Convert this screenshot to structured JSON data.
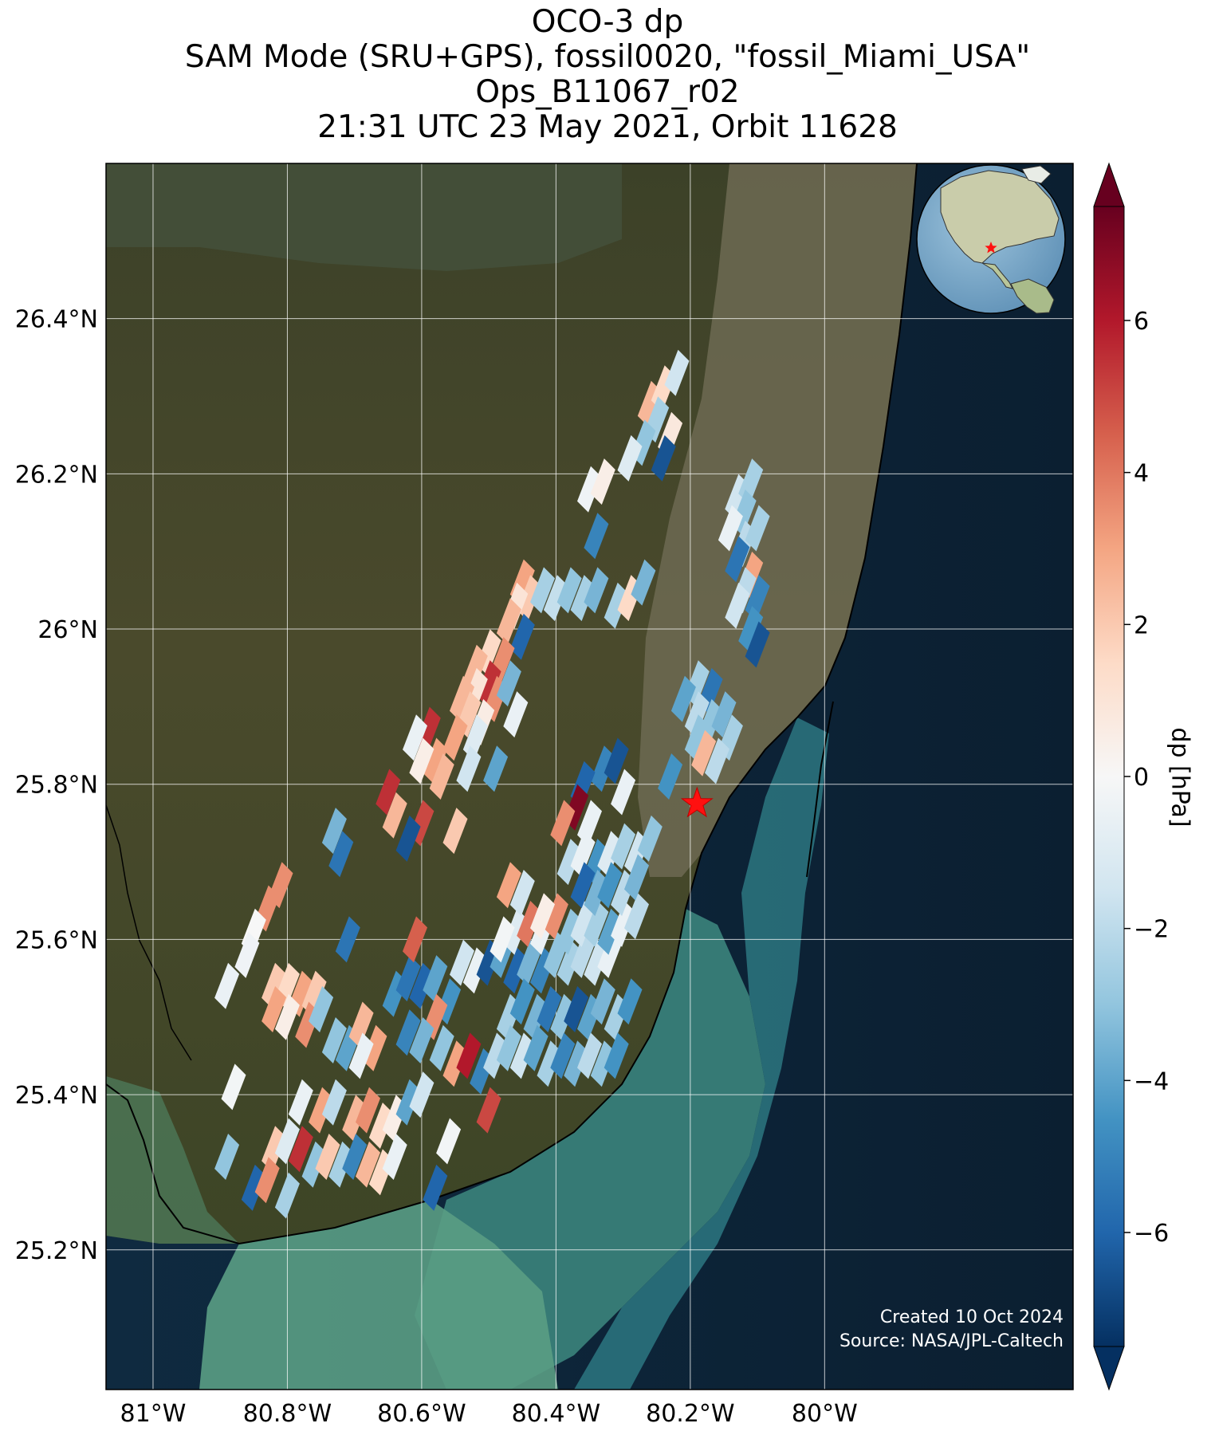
{
  "title": {
    "line1": "OCO-3 dp",
    "line2": "SAM Mode (SRU+GPS), fossil0020, \"fossil_Miami_USA\"",
    "line3": "Ops_B11067_r02",
    "line4": "21:31 UTC 23 May 2021, Orbit 11628"
  },
  "map": {
    "lat_ticks": [
      {
        "value": 26.4,
        "label": "26.4°N"
      },
      {
        "value": 26.2,
        "label": "26.2°N"
      },
      {
        "value": 26.0,
        "label": "26°N"
      },
      {
        "value": 25.8,
        "label": "25.8°N"
      },
      {
        "value": 25.6,
        "label": "25.6°N"
      },
      {
        "value": 25.4,
        "label": "25.4°N"
      },
      {
        "value": 25.2,
        "label": "25.2°N"
      }
    ],
    "lon_ticks": [
      {
        "value": -81.0,
        "label": "81°W"
      },
      {
        "value": -80.8,
        "label": "80.8°W"
      },
      {
        "value": -80.6,
        "label": "80.6°W"
      },
      {
        "value": -80.4,
        "label": "80.4°W"
      },
      {
        "value": -80.2,
        "label": "80.2°W"
      },
      {
        "value": -80.0,
        "label": "80°W"
      }
    ],
    "lon_range": [
      -81.07,
      -79.63
    ],
    "lat_range": [
      25.02,
      26.6
    ],
    "target": {
      "name": "fossil_Miami_USA",
      "lon": -80.19,
      "lat": 25.775,
      "marker": "red-star"
    },
    "credits": {
      "line1": "Created 10 Oct 2024",
      "line2": "Source: NASA/JPL-Caltech"
    },
    "inset": "globe-americas-with-red-star"
  },
  "colorbar": {
    "label": "dp [hPa]",
    "range": [
      -7.5,
      7.5
    ],
    "ticks": [
      {
        "value": 6,
        "label": "6"
      },
      {
        "value": 4,
        "label": "4"
      },
      {
        "value": 2,
        "label": "2"
      },
      {
        "value": 0,
        "label": "0"
      },
      {
        "value": -2,
        "label": "−2"
      },
      {
        "value": -4,
        "label": "−4"
      },
      {
        "value": -6,
        "label": "−6"
      }
    ],
    "colormap": "RdBu_r",
    "extend": "both"
  },
  "chart_data": {
    "type": "scatter",
    "title": "",
    "xlabel": "",
    "ylabel": "",
    "xlim": [
      -81.07,
      -79.63
    ],
    "ylim": [
      25.02,
      26.6
    ],
    "series": [
      {
        "name": "",
        "points": [
          [
            -80.26,
            26.29,
            2.5
          ],
          [
            -80.24,
            26.31,
            1.5
          ],
          [
            -80.22,
            26.33,
            -1.5
          ],
          [
            -80.25,
            26.27,
            -2.5
          ],
          [
            -80.23,
            26.25,
            0.8
          ],
          [
            -80.27,
            26.24,
            -3.0
          ],
          [
            -80.29,
            26.22,
            -1.0
          ],
          [
            -80.24,
            26.22,
            -6.5
          ],
          [
            -80.35,
            26.18,
            -0.3
          ],
          [
            -80.33,
            26.19,
            0.5
          ],
          [
            -80.34,
            26.12,
            -5.0
          ],
          [
            -80.13,
            26.17,
            -1.5
          ],
          [
            -80.11,
            26.19,
            -2.5
          ],
          [
            -80.12,
            26.15,
            -3.0
          ],
          [
            -80.14,
            26.13,
            -0.5
          ],
          [
            -80.12,
            26.11,
            -2.0
          ],
          [
            -80.1,
            26.13,
            -2.5
          ],
          [
            -80.13,
            26.09,
            -5.5
          ],
          [
            -80.11,
            26.07,
            3.0
          ],
          [
            -80.12,
            26.05,
            -2.0
          ],
          [
            -80.1,
            26.04,
            -5.0
          ],
          [
            -80.13,
            26.03,
            -1.5
          ],
          [
            -80.11,
            26.0,
            -4.5
          ],
          [
            -80.1,
            25.98,
            -6.5
          ],
          [
            -80.45,
            26.06,
            3.0
          ],
          [
            -80.44,
            26.04,
            2.0
          ],
          [
            -80.46,
            26.03,
            1.0
          ],
          [
            -80.47,
            26.01,
            2.5
          ],
          [
            -80.45,
            25.99,
            -6.0
          ],
          [
            -80.42,
            26.05,
            -2.5
          ],
          [
            -80.4,
            26.04,
            -1.8
          ],
          [
            -80.38,
            26.05,
            -3.0
          ],
          [
            -80.36,
            26.04,
            -2.5
          ],
          [
            -80.34,
            26.05,
            -3.5
          ],
          [
            -80.31,
            26.03,
            -2.5
          ],
          [
            -80.29,
            26.04,
            1.5
          ],
          [
            -80.27,
            26.06,
            -3.5
          ],
          [
            -80.5,
            25.97,
            1.5
          ],
          [
            -80.52,
            25.95,
            2.5
          ],
          [
            -80.48,
            25.96,
            3.5
          ],
          [
            -80.5,
            25.93,
            5.5
          ],
          [
            -80.49,
            25.91,
            3.5
          ],
          [
            -80.52,
            25.92,
            1.0
          ],
          [
            -80.54,
            25.91,
            2.5
          ],
          [
            -80.53,
            25.89,
            2.0
          ],
          [
            -80.51,
            25.88,
            0.6
          ],
          [
            -80.47,
            25.93,
            -3.5
          ],
          [
            -80.46,
            25.89,
            -0.5
          ],
          [
            -80.52,
            25.86,
            -1.0
          ],
          [
            -80.55,
            25.86,
            3.0
          ],
          [
            -80.59,
            25.87,
            5.5
          ],
          [
            -80.61,
            25.86,
            -0.5
          ],
          [
            -80.58,
            25.83,
            3.0
          ],
          [
            -80.6,
            25.83,
            0.5
          ],
          [
            -80.57,
            25.81,
            2.5
          ],
          [
            -80.53,
            25.82,
            -1.5
          ],
          [
            -80.49,
            25.82,
            -4.0
          ],
          [
            -80.19,
            25.93,
            -2.5
          ],
          [
            -80.21,
            25.91,
            -4.0
          ],
          [
            -80.17,
            25.92,
            -5.5
          ],
          [
            -80.19,
            25.89,
            -2.0
          ],
          [
            -80.17,
            25.88,
            -3.0
          ],
          [
            -80.15,
            25.89,
            -3.5
          ],
          [
            -80.14,
            25.86,
            -2.5
          ],
          [
            -80.19,
            25.86,
            -3.0
          ],
          [
            -80.18,
            25.84,
            2.5
          ],
          [
            -80.16,
            25.83,
            -2.0
          ],
          [
            -80.33,
            25.82,
            -5.0
          ],
          [
            -80.31,
            25.83,
            -6.5
          ],
          [
            -80.36,
            25.8,
            -6.0
          ],
          [
            -80.3,
            25.79,
            -0.5
          ],
          [
            -80.23,
            25.81,
            -4.5
          ],
          [
            -80.37,
            25.77,
            7.0
          ],
          [
            -80.39,
            25.75,
            3.5
          ],
          [
            -80.35,
            25.75,
            -0.5
          ],
          [
            -80.65,
            25.79,
            5.5
          ],
          [
            -80.64,
            25.76,
            2.5
          ],
          [
            -80.6,
            25.75,
            5.0
          ],
          [
            -80.62,
            25.73,
            -6.5
          ],
          [
            -80.55,
            25.74,
            2.0
          ],
          [
            -80.73,
            25.74,
            -3.5
          ],
          [
            -80.72,
            25.71,
            -5.5
          ],
          [
            -80.81,
            25.67,
            3.5
          ],
          [
            -80.83,
            25.64,
            3.5
          ],
          [
            -80.85,
            25.61,
            0.0
          ],
          [
            -80.86,
            25.58,
            -0.3
          ],
          [
            -80.89,
            25.54,
            -0.5
          ],
          [
            -80.71,
            25.6,
            -5.5
          ],
          [
            -80.82,
            25.54,
            2.0
          ],
          [
            -80.8,
            25.54,
            1.5
          ],
          [
            -80.78,
            25.53,
            3.0
          ],
          [
            -80.76,
            25.53,
            2.0
          ],
          [
            -80.82,
            25.51,
            3.0
          ],
          [
            -80.8,
            25.5,
            0.5
          ],
          [
            -80.77,
            25.49,
            3.5
          ],
          [
            -80.75,
            25.51,
            -3.0
          ],
          [
            -80.73,
            25.47,
            -3.0
          ],
          [
            -80.71,
            25.46,
            -4.0
          ],
          [
            -80.69,
            25.49,
            2.5
          ],
          [
            -80.67,
            25.46,
            3.0
          ],
          [
            -80.69,
            25.45,
            -0.5
          ],
          [
            -80.64,
            25.53,
            -4.5
          ],
          [
            -80.62,
            25.55,
            -5.5
          ],
          [
            -80.6,
            25.54,
            -6.0
          ],
          [
            -80.58,
            25.55,
            -4.0
          ],
          [
            -80.56,
            25.52,
            -4.5
          ],
          [
            -80.58,
            25.5,
            3.5
          ],
          [
            -80.61,
            25.6,
            4.5
          ],
          [
            -80.62,
            25.48,
            -5.0
          ],
          [
            -80.6,
            25.47,
            -3.5
          ],
          [
            -80.57,
            25.46,
            -3.0
          ],
          [
            -80.55,
            25.44,
            3.0
          ],
          [
            -80.53,
            25.45,
            6.0
          ],
          [
            -80.51,
            25.43,
            -5.0
          ],
          [
            -80.54,
            25.57,
            -1.5
          ],
          [
            -80.52,
            25.56,
            -0.5
          ],
          [
            -80.5,
            25.57,
            -6.5
          ],
          [
            -80.48,
            25.58,
            -4.0
          ],
          [
            -80.46,
            25.56,
            -6.0
          ],
          [
            -80.44,
            25.57,
            -3.5
          ],
          [
            -80.42,
            25.56,
            -5.0
          ],
          [
            -80.4,
            25.58,
            -3.0
          ],
          [
            -80.38,
            25.57,
            -2.5
          ],
          [
            -80.36,
            25.58,
            -2.0
          ],
          [
            -80.34,
            25.57,
            -1.5
          ],
          [
            -80.32,
            25.58,
            -0.5
          ],
          [
            -80.46,
            25.61,
            -1.0
          ],
          [
            -80.44,
            25.62,
            4.0
          ],
          [
            -80.42,
            25.61,
            -0.5
          ],
          [
            -80.4,
            25.63,
            3.5
          ],
          [
            -80.38,
            25.61,
            -3.0
          ],
          [
            -80.36,
            25.62,
            -1.5
          ],
          [
            -80.34,
            25.62,
            -2.5
          ],
          [
            -80.32,
            25.61,
            -4.0
          ],
          [
            -80.3,
            25.62,
            -0.5
          ],
          [
            -80.28,
            25.63,
            -2.0
          ],
          [
            -80.38,
            25.7,
            -2.0
          ],
          [
            -80.36,
            25.71,
            -0.5
          ],
          [
            -80.34,
            25.7,
            -4.5
          ],
          [
            -80.32,
            25.71,
            -1.0
          ],
          [
            -80.3,
            25.72,
            -2.5
          ],
          [
            -80.28,
            25.71,
            -1.5
          ],
          [
            -80.26,
            25.73,
            -3.0
          ],
          [
            -80.36,
            25.67,
            -6.0
          ],
          [
            -80.34,
            25.66,
            -3.5
          ],
          [
            -80.32,
            25.67,
            -4.5
          ],
          [
            -80.3,
            25.66,
            -2.0
          ],
          [
            -80.28,
            25.68,
            -3.5
          ],
          [
            -80.47,
            25.67,
            3.0
          ],
          [
            -80.45,
            25.66,
            -1.5
          ],
          [
            -80.42,
            25.63,
            0.5
          ],
          [
            -80.48,
            25.6,
            -0.2
          ],
          [
            -80.47,
            25.5,
            -2.5
          ],
          [
            -80.45,
            25.52,
            -4.5
          ],
          [
            -80.43,
            25.5,
            -3.5
          ],
          [
            -80.41,
            25.51,
            -5.5
          ],
          [
            -80.39,
            25.5,
            -3.0
          ],
          [
            -80.37,
            25.51,
            -6.5
          ],
          [
            -80.35,
            25.5,
            -4.0
          ],
          [
            -80.33,
            25.52,
            -3.5
          ],
          [
            -80.31,
            25.5,
            -2.5
          ],
          [
            -80.29,
            25.52,
            -4.5
          ],
          [
            -80.49,
            25.45,
            -2.0
          ],
          [
            -80.47,
            25.46,
            -3.0
          ],
          [
            -80.45,
            25.45,
            -1.5
          ],
          [
            -80.43,
            25.46,
            -4.0
          ],
          [
            -80.41,
            25.44,
            -2.5
          ],
          [
            -80.39,
            25.45,
            -5.0
          ],
          [
            -80.37,
            25.44,
            -3.5
          ],
          [
            -80.35,
            25.45,
            -2.0
          ],
          [
            -80.33,
            25.44,
            -3.0
          ],
          [
            -80.31,
            25.45,
            -4.5
          ],
          [
            -80.88,
            25.41,
            -0.2
          ],
          [
            -80.78,
            25.39,
            -0.5
          ],
          [
            -80.75,
            25.38,
            3.0
          ],
          [
            -80.73,
            25.39,
            -2.0
          ],
          [
            -80.7,
            25.37,
            2.5
          ],
          [
            -80.68,
            25.38,
            3.5
          ],
          [
            -80.66,
            25.36,
            1.5
          ],
          [
            -80.64,
            25.37,
            0.5
          ],
          [
            -80.62,
            25.39,
            -4.0
          ],
          [
            -80.6,
            25.4,
            -1.5
          ],
          [
            -80.82,
            25.33,
            2.0
          ],
          [
            -80.8,
            25.34,
            -1.0
          ],
          [
            -80.78,
            25.33,
            5.5
          ],
          [
            -80.76,
            25.31,
            -3.0
          ],
          [
            -80.74,
            25.32,
            2.0
          ],
          [
            -80.72,
            25.31,
            -2.5
          ],
          [
            -80.7,
            25.32,
            -5.0
          ],
          [
            -80.68,
            25.31,
            2.5
          ],
          [
            -80.66,
            25.3,
            1.5
          ],
          [
            -80.64,
            25.32,
            -0.5
          ],
          [
            -80.89,
            25.32,
            -3.0
          ],
          [
            -80.85,
            25.28,
            -6.0
          ],
          [
            -80.83,
            25.29,
            3.5
          ],
          [
            -80.8,
            25.27,
            -2.5
          ],
          [
            -80.58,
            25.28,
            -6.0
          ],
          [
            -80.5,
            25.38,
            5.0
          ],
          [
            -80.56,
            25.34,
            -0.2
          ]
        ]
      }
    ]
  }
}
